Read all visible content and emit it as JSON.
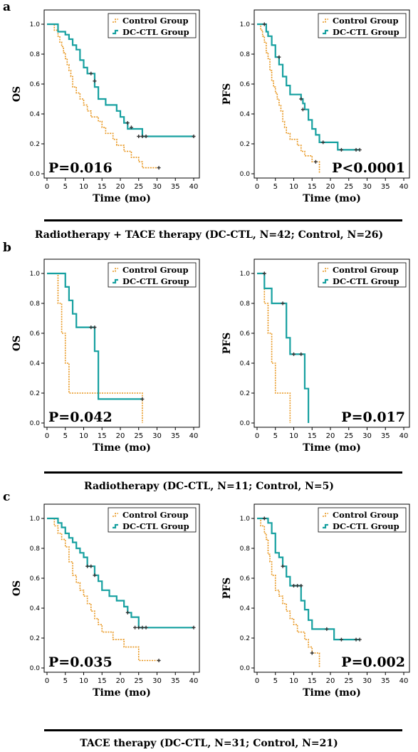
{
  "colors": {
    "control": "#E8961E",
    "dcctl": "#16A0A0",
    "censor": "#333333",
    "axis": "#000000"
  },
  "legend_labels": {
    "control": "Control Group",
    "dcctl": "DC-CTL Group"
  },
  "panels": [
    {
      "letter": "a",
      "caption": "Radiotherapy + TACE therapy (DC-CTL, N=42;  Control, N=26)"
    },
    {
      "letter": "b",
      "caption": "Radiotherapy (DC-CTL, N=11;  Control, N=5)"
    },
    {
      "letter": "c",
      "caption": "TACE therapy (DC-CTL, N=31;  Control, N=21)"
    }
  ],
  "chart_data": [
    {
      "type": "line",
      "panel": "a",
      "ylabel": "OS",
      "xlabel": "Time (mo)",
      "pvalue": "P=0.016",
      "xlim": [
        0,
        40
      ],
      "ylim": [
        0,
        1.0
      ],
      "xticks": [
        "0",
        "5",
        "10",
        "15",
        "20",
        "25",
        "30",
        "35",
        "40"
      ],
      "yticks": [
        "0.0",
        "0.2",
        "0.4",
        "0.6",
        "0.8",
        "1.0"
      ],
      "legend_position": "top-right",
      "series": [
        {
          "name": "Control Group",
          "x": [
            0,
            2,
            3,
            3.5,
            4,
            4.5,
            5,
            5.5,
            6,
            6.5,
            7,
            8,
            9,
            10,
            11,
            12,
            13,
            14,
            15,
            16,
            17,
            18,
            19,
            20,
            21,
            22,
            23,
            25,
            26,
            30.5
          ],
          "y": [
            1.0,
            0.96,
            0.92,
            0.88,
            0.85,
            0.81,
            0.77,
            0.73,
            0.69,
            0.65,
            0.58,
            0.54,
            0.5,
            0.46,
            0.42,
            0.38,
            0.38,
            0.35,
            0.31,
            0.27,
            0.27,
            0.23,
            0.19,
            0.19,
            0.15,
            0.15,
            0.11,
            0.08,
            0.04,
            0.04
          ],
          "censored": [
            [
              30.5,
              0.04
            ]
          ]
        },
        {
          "name": "DC-CTL Group",
          "x": [
            0,
            3,
            5,
            6,
            7,
            8,
            9,
            10,
            11,
            12,
            13,
            14,
            16,
            17,
            19,
            20,
            21,
            22,
            23,
            26,
            40
          ],
          "y": [
            1.0,
            0.95,
            0.93,
            0.9,
            0.86,
            0.83,
            0.76,
            0.71,
            0.67,
            0.67,
            0.58,
            0.5,
            0.46,
            0.46,
            0.42,
            0.38,
            0.34,
            0.3,
            0.3,
            0.25,
            0.25
          ],
          "censored": [
            [
              12,
              0.67
            ],
            [
              13,
              0.62
            ],
            [
              22,
              0.34
            ],
            [
              23,
              0.31
            ],
            [
              25,
              0.25
            ],
            [
              26,
              0.25
            ],
            [
              27,
              0.25
            ],
            [
              40,
              0.25
            ]
          ]
        }
      ]
    },
    {
      "type": "line",
      "panel": "a",
      "ylabel": "PFS",
      "xlabel": "Time (mo)",
      "pvalue": "P<0.0001",
      "xlim": [
        0,
        40
      ],
      "ylim": [
        0,
        1.0
      ],
      "xticks": [
        "0",
        "5",
        "10",
        "15",
        "20",
        "25",
        "30",
        "35",
        "40"
      ],
      "yticks": [
        "0.0",
        "0.2",
        "0.4",
        "0.6",
        "0.8",
        "1.0"
      ],
      "legend_position": "top-right",
      "series": [
        {
          "name": "Control Group",
          "x": [
            0,
            1,
            1.5,
            2,
            2.5,
            3,
            3.5,
            4,
            4.5,
            5,
            5.5,
            6,
            6.5,
            7,
            7.5,
            8,
            9,
            10,
            11,
            12,
            13,
            14,
            15,
            16,
            17
          ],
          "y": [
            1.0,
            0.96,
            0.92,
            0.88,
            0.81,
            0.77,
            0.69,
            0.62,
            0.58,
            0.54,
            0.5,
            0.46,
            0.42,
            0.35,
            0.31,
            0.27,
            0.23,
            0.23,
            0.19,
            0.15,
            0.12,
            0.12,
            0.08,
            0.08,
            0.0
          ],
          "censored": [
            [
              16,
              0.08
            ]
          ]
        },
        {
          "name": "DC-CTL Group",
          "x": [
            0,
            2,
            2.5,
            3,
            4,
            5,
            5.5,
            6,
            7,
            8,
            9,
            10,
            11,
            12,
            12.5,
            13,
            14,
            15,
            16,
            17,
            18,
            20,
            22,
            23,
            27,
            28
          ],
          "y": [
            1.0,
            1.0,
            0.95,
            0.92,
            0.86,
            0.78,
            0.78,
            0.73,
            0.65,
            0.59,
            0.53,
            0.53,
            0.53,
            0.5,
            0.47,
            0.43,
            0.36,
            0.3,
            0.26,
            0.21,
            0.21,
            0.21,
            0.16,
            0.16,
            0.16,
            0.16
          ],
          "censored": [
            [
              2,
              1.0
            ],
            [
              6,
              0.78
            ],
            [
              12,
              0.5
            ],
            [
              12.5,
              0.43
            ],
            [
              18,
              0.21
            ],
            [
              23,
              0.16
            ],
            [
              27,
              0.16
            ],
            [
              28,
              0.16
            ]
          ]
        }
      ]
    },
    {
      "type": "line",
      "panel": "b",
      "ylabel": "OS",
      "xlabel": "Time (mo)",
      "pvalue": "P=0.042",
      "xlim": [
        0,
        40
      ],
      "ylim": [
        0,
        1.0
      ],
      "xticks": [
        "0",
        "5",
        "10",
        "15",
        "20",
        "25",
        "30",
        "35",
        "40"
      ],
      "yticks": [
        "0.0",
        "0.2",
        "0.4",
        "0.6",
        "0.8",
        "1.0"
      ],
      "legend_position": "top-right",
      "series": [
        {
          "name": "Control Group",
          "x": [
            0,
            3,
            4,
            5,
            6,
            26
          ],
          "y": [
            1.0,
            0.8,
            0.6,
            0.4,
            0.2,
            0.0
          ],
          "censored": []
        },
        {
          "name": "DC-CTL Group",
          "x": [
            0,
            5,
            6,
            7,
            8,
            11,
            12,
            13,
            14,
            26
          ],
          "y": [
            1.0,
            0.91,
            0.82,
            0.73,
            0.64,
            0.64,
            0.64,
            0.48,
            0.16,
            0.16
          ],
          "censored": [
            [
              12,
              0.64
            ],
            [
              13,
              0.64
            ],
            [
              26,
              0.16
            ]
          ]
        }
      ]
    },
    {
      "type": "line",
      "panel": "b",
      "ylabel": "PFS",
      "xlabel": "Time (mo)",
      "pvalue": "P=0.017",
      "xlim": [
        0,
        40
      ],
      "ylim": [
        0,
        1.0
      ],
      "xticks": [
        "0",
        "5",
        "10",
        "15",
        "20",
        "25",
        "30",
        "35",
        "40"
      ],
      "yticks": [
        "0.0",
        "0.2",
        "0.4",
        "0.6",
        "0.8",
        "1.0"
      ],
      "legend_position": "top-right",
      "series": [
        {
          "name": "Control Group",
          "x": [
            0,
            2,
            3,
            4,
            5,
            9
          ],
          "y": [
            1.0,
            0.8,
            0.6,
            0.4,
            0.2,
            0.0
          ],
          "censored": []
        },
        {
          "name": "DC-CTL Group",
          "x": [
            0,
            2,
            4,
            7,
            8,
            9,
            12,
            13,
            14
          ],
          "y": [
            1.0,
            0.9,
            0.8,
            0.8,
            0.57,
            0.46,
            0.46,
            0.23,
            0.0
          ],
          "censored": [
            [
              2,
              1.0
            ],
            [
              7,
              0.8
            ],
            [
              10,
              0.46
            ],
            [
              12,
              0.46
            ]
          ]
        }
      ]
    },
    {
      "type": "line",
      "panel": "c",
      "ylabel": "OS",
      "xlabel": "Time (mo)",
      "pvalue": "P=0.035",
      "xlim": [
        0,
        40
      ],
      "ylim": [
        0,
        1.0
      ],
      "xticks": [
        "0",
        "5",
        "10",
        "15",
        "20",
        "25",
        "30",
        "35",
        "40"
      ],
      "yticks": [
        "0.0",
        "0.2",
        "0.4",
        "0.6",
        "0.8",
        "1.0"
      ],
      "legend_position": "top-right",
      "series": [
        {
          "name": "Control Group",
          "x": [
            0,
            2,
            3,
            4,
            5,
            6,
            7,
            8,
            9,
            10,
            11,
            12,
            13,
            14,
            15,
            18,
            20,
            21,
            24,
            25,
            30.5
          ],
          "y": [
            1.0,
            0.95,
            0.9,
            0.86,
            0.81,
            0.71,
            0.62,
            0.57,
            0.52,
            0.48,
            0.43,
            0.38,
            0.33,
            0.29,
            0.24,
            0.19,
            0.19,
            0.14,
            0.14,
            0.05,
            0.05
          ],
          "censored": [
            [
              30.5,
              0.05
            ]
          ]
        },
        {
          "name": "DC-CTL Group",
          "x": [
            0,
            3,
            4,
            5,
            6,
            7,
            8,
            9,
            10,
            11,
            12,
            13,
            14,
            15,
            17,
            19,
            21,
            22,
            23,
            25,
            26,
            40
          ],
          "y": [
            1.0,
            0.97,
            0.94,
            0.9,
            0.87,
            0.84,
            0.8,
            0.77,
            0.74,
            0.68,
            0.68,
            0.62,
            0.58,
            0.52,
            0.48,
            0.45,
            0.41,
            0.37,
            0.34,
            0.27,
            0.27,
            0.27
          ],
          "censored": [
            [
              11,
              0.68
            ],
            [
              12,
              0.68
            ],
            [
              13,
              0.62
            ],
            [
              22,
              0.37
            ],
            [
              24,
              0.27
            ],
            [
              25,
              0.27
            ],
            [
              26,
              0.27
            ],
            [
              27,
              0.27
            ],
            [
              40,
              0.27
            ]
          ]
        }
      ]
    },
    {
      "type": "line",
      "panel": "c",
      "ylabel": "PFS",
      "xlabel": "Time (mo)",
      "pvalue": "P=0.002",
      "xlim": [
        0,
        40
      ],
      "ylim": [
        0,
        1.0
      ],
      "xticks": [
        "0",
        "5",
        "10",
        "15",
        "20",
        "25",
        "30",
        "35",
        "40"
      ],
      "yticks": [
        "0.0",
        "0.2",
        "0.4",
        "0.6",
        "0.8",
        "1.0"
      ],
      "legend_position": "top-right",
      "series": [
        {
          "name": "Control Group",
          "x": [
            0,
            1,
            2,
            2.5,
            3,
            3.5,
            4,
            5,
            6,
            7,
            8,
            9,
            10,
            11,
            12,
            13,
            14,
            15,
            16,
            17
          ],
          "y": [
            1.0,
            0.95,
            0.9,
            0.86,
            0.76,
            0.71,
            0.62,
            0.52,
            0.48,
            0.43,
            0.38,
            0.33,
            0.29,
            0.24,
            0.24,
            0.19,
            0.14,
            0.1,
            0.1,
            0.0
          ],
          "censored": [
            [
              15,
              0.1
            ]
          ]
        },
        {
          "name": "DC-CTL Group",
          "x": [
            0,
            2,
            3,
            4,
            5,
            6,
            7,
            8,
            9,
            10,
            11,
            12,
            13,
            14,
            15,
            17,
            19,
            21,
            23,
            27,
            28
          ],
          "y": [
            1.0,
            1.0,
            0.97,
            0.9,
            0.77,
            0.74,
            0.68,
            0.61,
            0.55,
            0.55,
            0.55,
            0.45,
            0.39,
            0.32,
            0.26,
            0.26,
            0.26,
            0.19,
            0.19,
            0.19,
            0.19
          ],
          "censored": [
            [
              2,
              1.0
            ],
            [
              7,
              0.68
            ],
            [
              10,
              0.55
            ],
            [
              11,
              0.55
            ],
            [
              12,
              0.55
            ],
            [
              19,
              0.26
            ],
            [
              23,
              0.19
            ],
            [
              27,
              0.19
            ],
            [
              28,
              0.19
            ]
          ]
        }
      ]
    }
  ]
}
